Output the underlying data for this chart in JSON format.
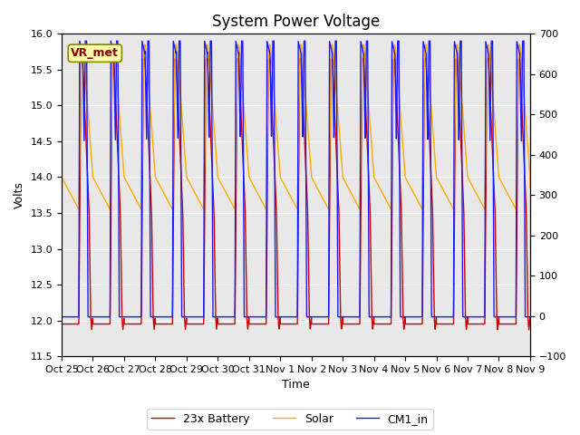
{
  "title": "System Power Voltage",
  "xlabel": "Time",
  "ylabel_left": "Volts",
  "ylim_left": [
    11.5,
    16.0
  ],
  "ylim_right": [
    -100,
    700
  ],
  "yticks_left": [
    11.5,
    12.0,
    12.5,
    13.0,
    13.5,
    14.0,
    14.5,
    15.0,
    15.5,
    16.0
  ],
  "yticks_right": [
    -100,
    0,
    100,
    200,
    300,
    400,
    500,
    600,
    700
  ],
  "x_tick_labels": [
    "Oct 25",
    "Oct 26",
    "Oct 27",
    "Oct 28",
    "Oct 29",
    "Oct 30",
    "Oct 31",
    "Nov 1",
    "Nov 2",
    "Nov 3",
    "Nov 4",
    "Nov 5",
    "Nov 6",
    "Nov 7",
    "Nov 8",
    "Nov 9"
  ],
  "legend_labels": [
    "23x Battery",
    "Solar",
    "CM1_in"
  ],
  "line_colors": [
    "#cc0000",
    "#ffaa00",
    "#1a1aff"
  ],
  "vr_met_label": "VR_met",
  "vr_met_bg": "#ffffaa",
  "vr_met_border": "#888800",
  "vr_met_text_color": "#8b0000",
  "background_color": "#ffffff",
  "plot_bg_color": "#e8e8e8",
  "grid_color": "#ffffff",
  "title_fontsize": 12,
  "axis_label_fontsize": 9,
  "tick_fontsize": 8,
  "legend_fontsize": 9,
  "num_cycles": 15,
  "linewidth": 1.0
}
